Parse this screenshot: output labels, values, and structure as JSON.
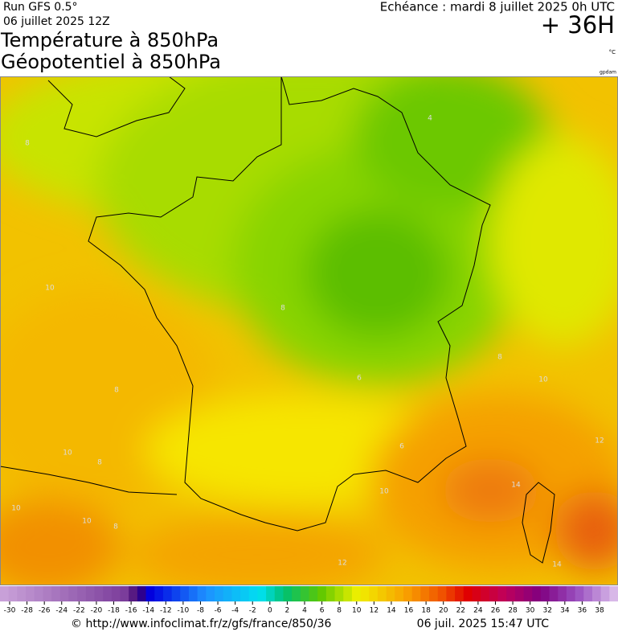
{
  "header": {
    "run": "Run GFS 0.5°",
    "date": "06 juillet 2025 12Z",
    "title_line1": "Température à 850hPa",
    "title_line2": "Géopotentiel à 850hPa",
    "echeance": "Echéance : mardi 8 juillet 2025 0h UTC",
    "lead_time": "+ 36H",
    "unit": "°C",
    "credit": "gpdam"
  },
  "map": {
    "contour_labels": [
      "8",
      "4",
      "10",
      "8",
      "8",
      "6",
      "8",
      "10",
      "8",
      "10",
      "12",
      "14",
      "10",
      "10",
      "6",
      "12",
      "14",
      "8",
      "10"
    ]
  },
  "legend": {
    "ticks": [
      -30,
      -28,
      -26,
      -24,
      -22,
      -20,
      -18,
      -16,
      -14,
      -12,
      -10,
      -8,
      -6,
      -4,
      -2,
      0,
      2,
      4,
      6,
      8,
      10,
      12,
      14,
      16,
      18,
      20,
      22,
      24,
      26,
      28,
      30,
      32,
      34,
      36,
      38
    ]
  },
  "footer": {
    "url": "© http://www.infoclimat.fr/z/gfs/france/850/36",
    "timestamp": "06 juil. 2025 15:47 UTC"
  }
}
